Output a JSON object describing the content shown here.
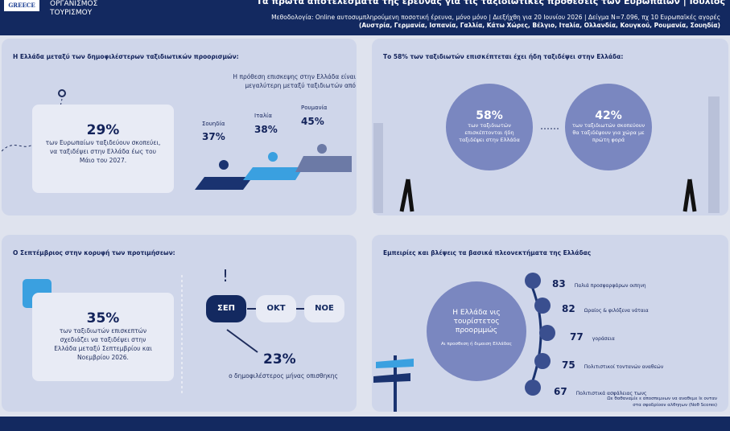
{
  "header": {
    "logo": "GREECE",
    "org": [
      "ΟΡΓΑΝΙΣΜΟΣ",
      "ΤΟΥΡΙΣΜΟΥ"
    ],
    "title": "Τα πρώτα αποτελέσματα της έρευνας για τις ταξιδιωτικές προθέσεις των Ευρωπαίων | Ιούλιος",
    "method": [
      "Μεθοδολογία: Online αυτοσυμπληρούμενη ποσοτική έρευνα, μόνο μόνο | Διεξήχθη για 20 Ιουνίου 2026 | Δείγμα N=7.096, πχ 10 Ευρωπαϊκές αγορές",
      "(Αυστρία, Γερμανία, Ισπανία, Γαλλία, Κάτω Χώρες, Βέλγιο, Ιταλία, Ολλανδία, Κουγκού, Ρουμανία, Σουηδία)"
    ]
  },
  "panel1": {
    "title": "Η Ελλάδα μεταξύ των δημοφιλέστερων ταξιδιωτικών προορισμών:",
    "big": "29%",
    "text": [
      "των Ευρωπαίων ταξιδεύουν σκοπεύει,",
      "να ταξιδέψει στην Ελλάδα έως του",
      "Μάιο του 2027."
    ],
    "note": [
      "Η πρόθεση επισκεψης στην Ελλάδα είναι",
      "μεγαλύτερη μεταξύ ταξιδιωτών από"
    ],
    "countries": [
      {
        "name": "Σουηδία",
        "value": "37%"
      },
      {
        "name": "Ιταλία",
        "value": "38%"
      },
      {
        "name": "Ρουμανία",
        "value": "45%"
      }
    ]
  },
  "panel2": {
    "title": "Το 58% των ταξιδιωτών επισκέπτεται έχει ήδη ταξιδέψει στην Ελλάδα:",
    "left": {
      "value": "58%",
      "text": [
        "των ταξιδιωτών",
        "επισκέπτονται ήδη",
        "ταξιδέψει στην Ελλάδα"
      ]
    },
    "right": {
      "value": "42%",
      "text": [
        "των ταξιδιωτών σκοπεύουν",
        "θα ταξιδέψουν για χώρα με",
        "πρώτη φορά"
      ]
    }
  },
  "panel3": {
    "title": "Ο Σεπτέμβριος στην κορυφή των προτιμήσεων:",
    "big": "35%",
    "text": [
      "των ταξιδιωτών επισκεπτών",
      "σχεδιάζει να ταξιδέψει στην",
      "Ελλάδα μεταξύ Σεπτεμβρίου και",
      "Νοεμβρίου 2026."
    ],
    "months": [
      "ΣΕΠ",
      "ΟΚΤ",
      "ΝΟΕ"
    ],
    "stat": "23%",
    "stat_text": "ο δημοφιλέστερος μήνας οπισθηκης"
  },
  "panel4": {
    "title": "Εμπειρίες και βλέψεις τα βασικά πλεονεκτήματα της Ελλάδας",
    "circle": [
      "Η Ελλάδα νις",
      "τουρίστετος",
      "προορμμώς"
    ],
    "circle_sub": "Αι προσθεση ή διμαιση Ελλάδας",
    "items": [
      {
        "value": "83",
        "label": "Παλιά προσφαρφάρων οιπηνη"
      },
      {
        "value": "82",
        "label": "Ωραίος & φιλόξενα νάταια"
      },
      {
        "value": "77",
        "label": "γοράσεια"
      },
      {
        "value": "75",
        "label": "Πολιτιστικοί τοντανών αναθεών"
      },
      {
        "value": "67",
        "label": "Πολιτιστικά ασφάλειας τωνς"
      }
    ],
    "foot": [
      "Ωε θαθαναμίε ε αποσπεμνων να αναθεμε Ιε ονταν",
      "στα σφοδρίοον αλθηηων (Νοθ Scores)"
    ]
  }
}
